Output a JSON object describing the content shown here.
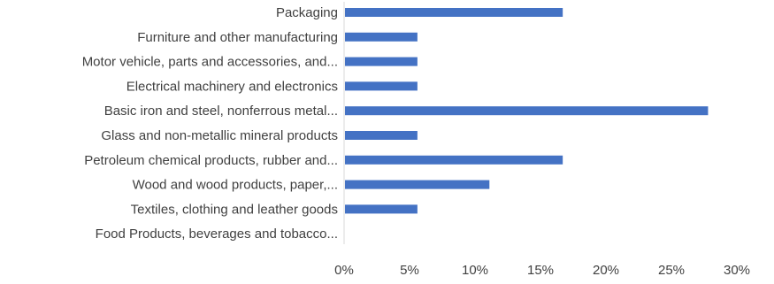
{
  "chart_data": {
    "type": "bar",
    "orientation": "horizontal",
    "categories": [
      "Packaging",
      "Furniture and other manufacturing",
      "Motor vehicle, parts and accessories, and...",
      "Electrical machinery and electronics",
      "Basic iron and steel, nonferrous metal...",
      "Glass and non-metallic mineral products",
      "Petroleum chemical products, rubber and...",
      "Wood and wood products, paper,...",
      "Textiles, clothing and leather goods",
      "Food Products, beverages and tobacco..."
    ],
    "values": [
      16.7,
      5.6,
      5.6,
      5.6,
      27.8,
      5.6,
      16.7,
      11.1,
      5.6,
      0
    ],
    "xlim": [
      0,
      30
    ],
    "xticks": [
      0,
      5,
      10,
      15,
      20,
      25,
      30
    ],
    "xtick_labels": [
      "0%",
      "5%",
      "10%",
      "15%",
      "20%",
      "25%",
      "30%"
    ],
    "title": "",
    "xlabel": "",
    "ylabel": "",
    "grid": false,
    "legend": false,
    "bar_color": "#4472C4",
    "axis_color": "#D9D9D9"
  }
}
